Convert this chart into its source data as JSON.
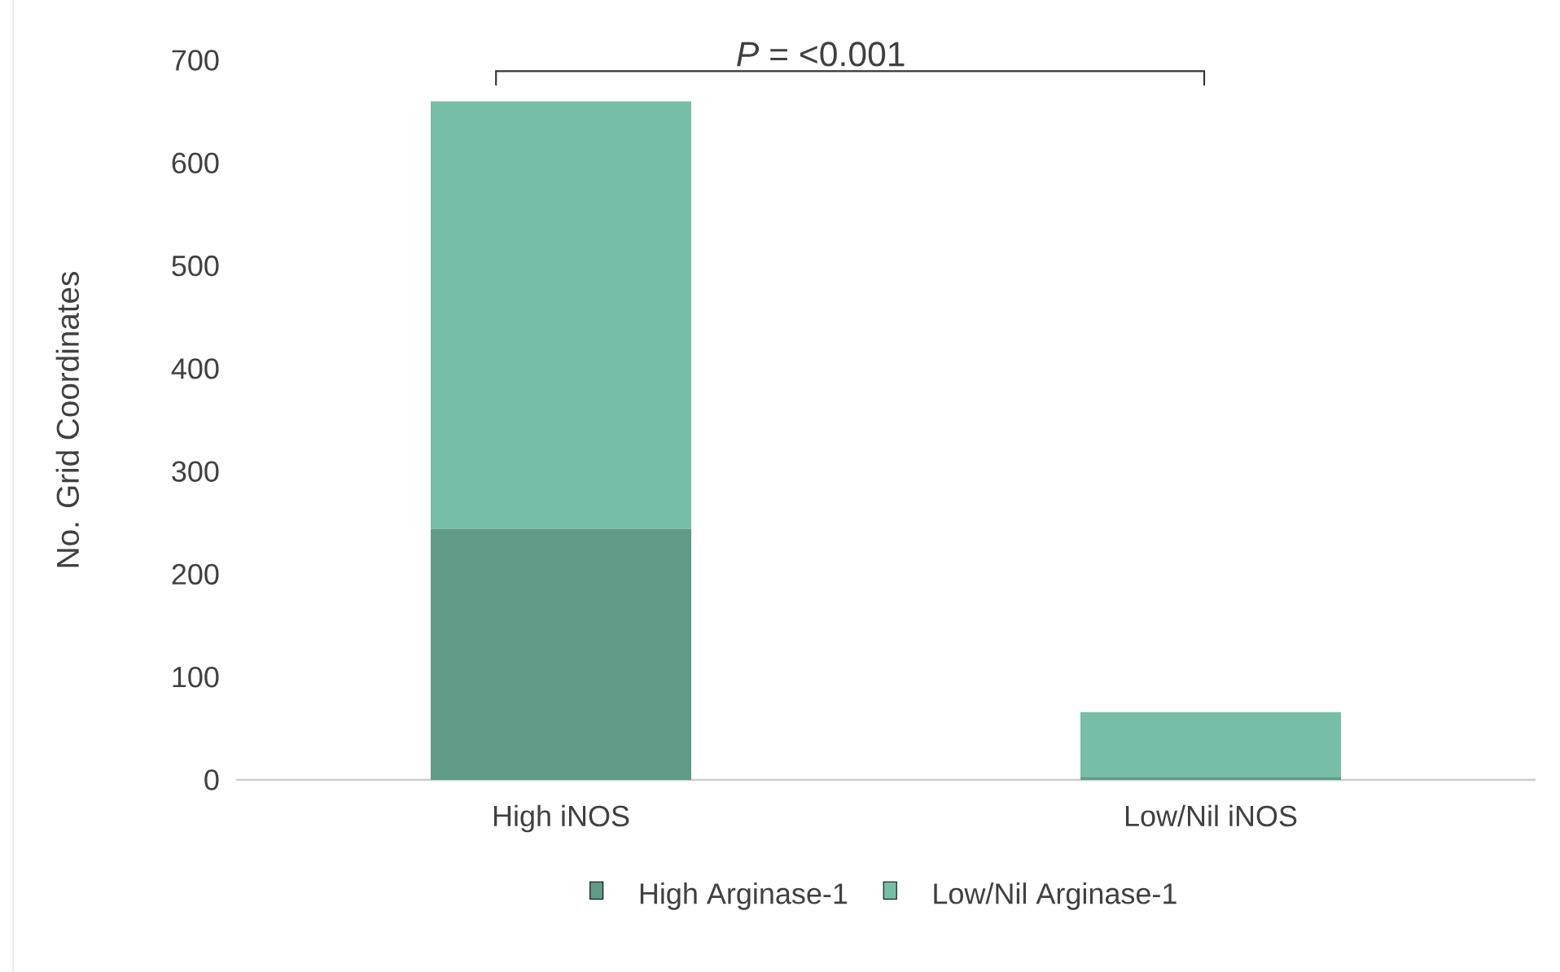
{
  "chart_data": {
    "type": "bar",
    "stacked": true,
    "categories": [
      "High iNOS",
      "Low/Nil iNOS"
    ],
    "series": [
      {
        "name": "High Arginase-1",
        "color": "#5f9b87",
        "values": [
          244,
          3
        ]
      },
      {
        "name": "Low/Nil Arginase-1",
        "color": "#76bea7",
        "values": [
          416,
          63
        ]
      }
    ],
    "ylabel": "No. Grid Coordinates",
    "ylim": [
      0,
      700
    ],
    "yticks": [
      0,
      100,
      200,
      300,
      400,
      500,
      600,
      700
    ],
    "annotations": [
      "*P* = <0.001"
    ],
    "legend": "bottom",
    "grid": false
  }
}
